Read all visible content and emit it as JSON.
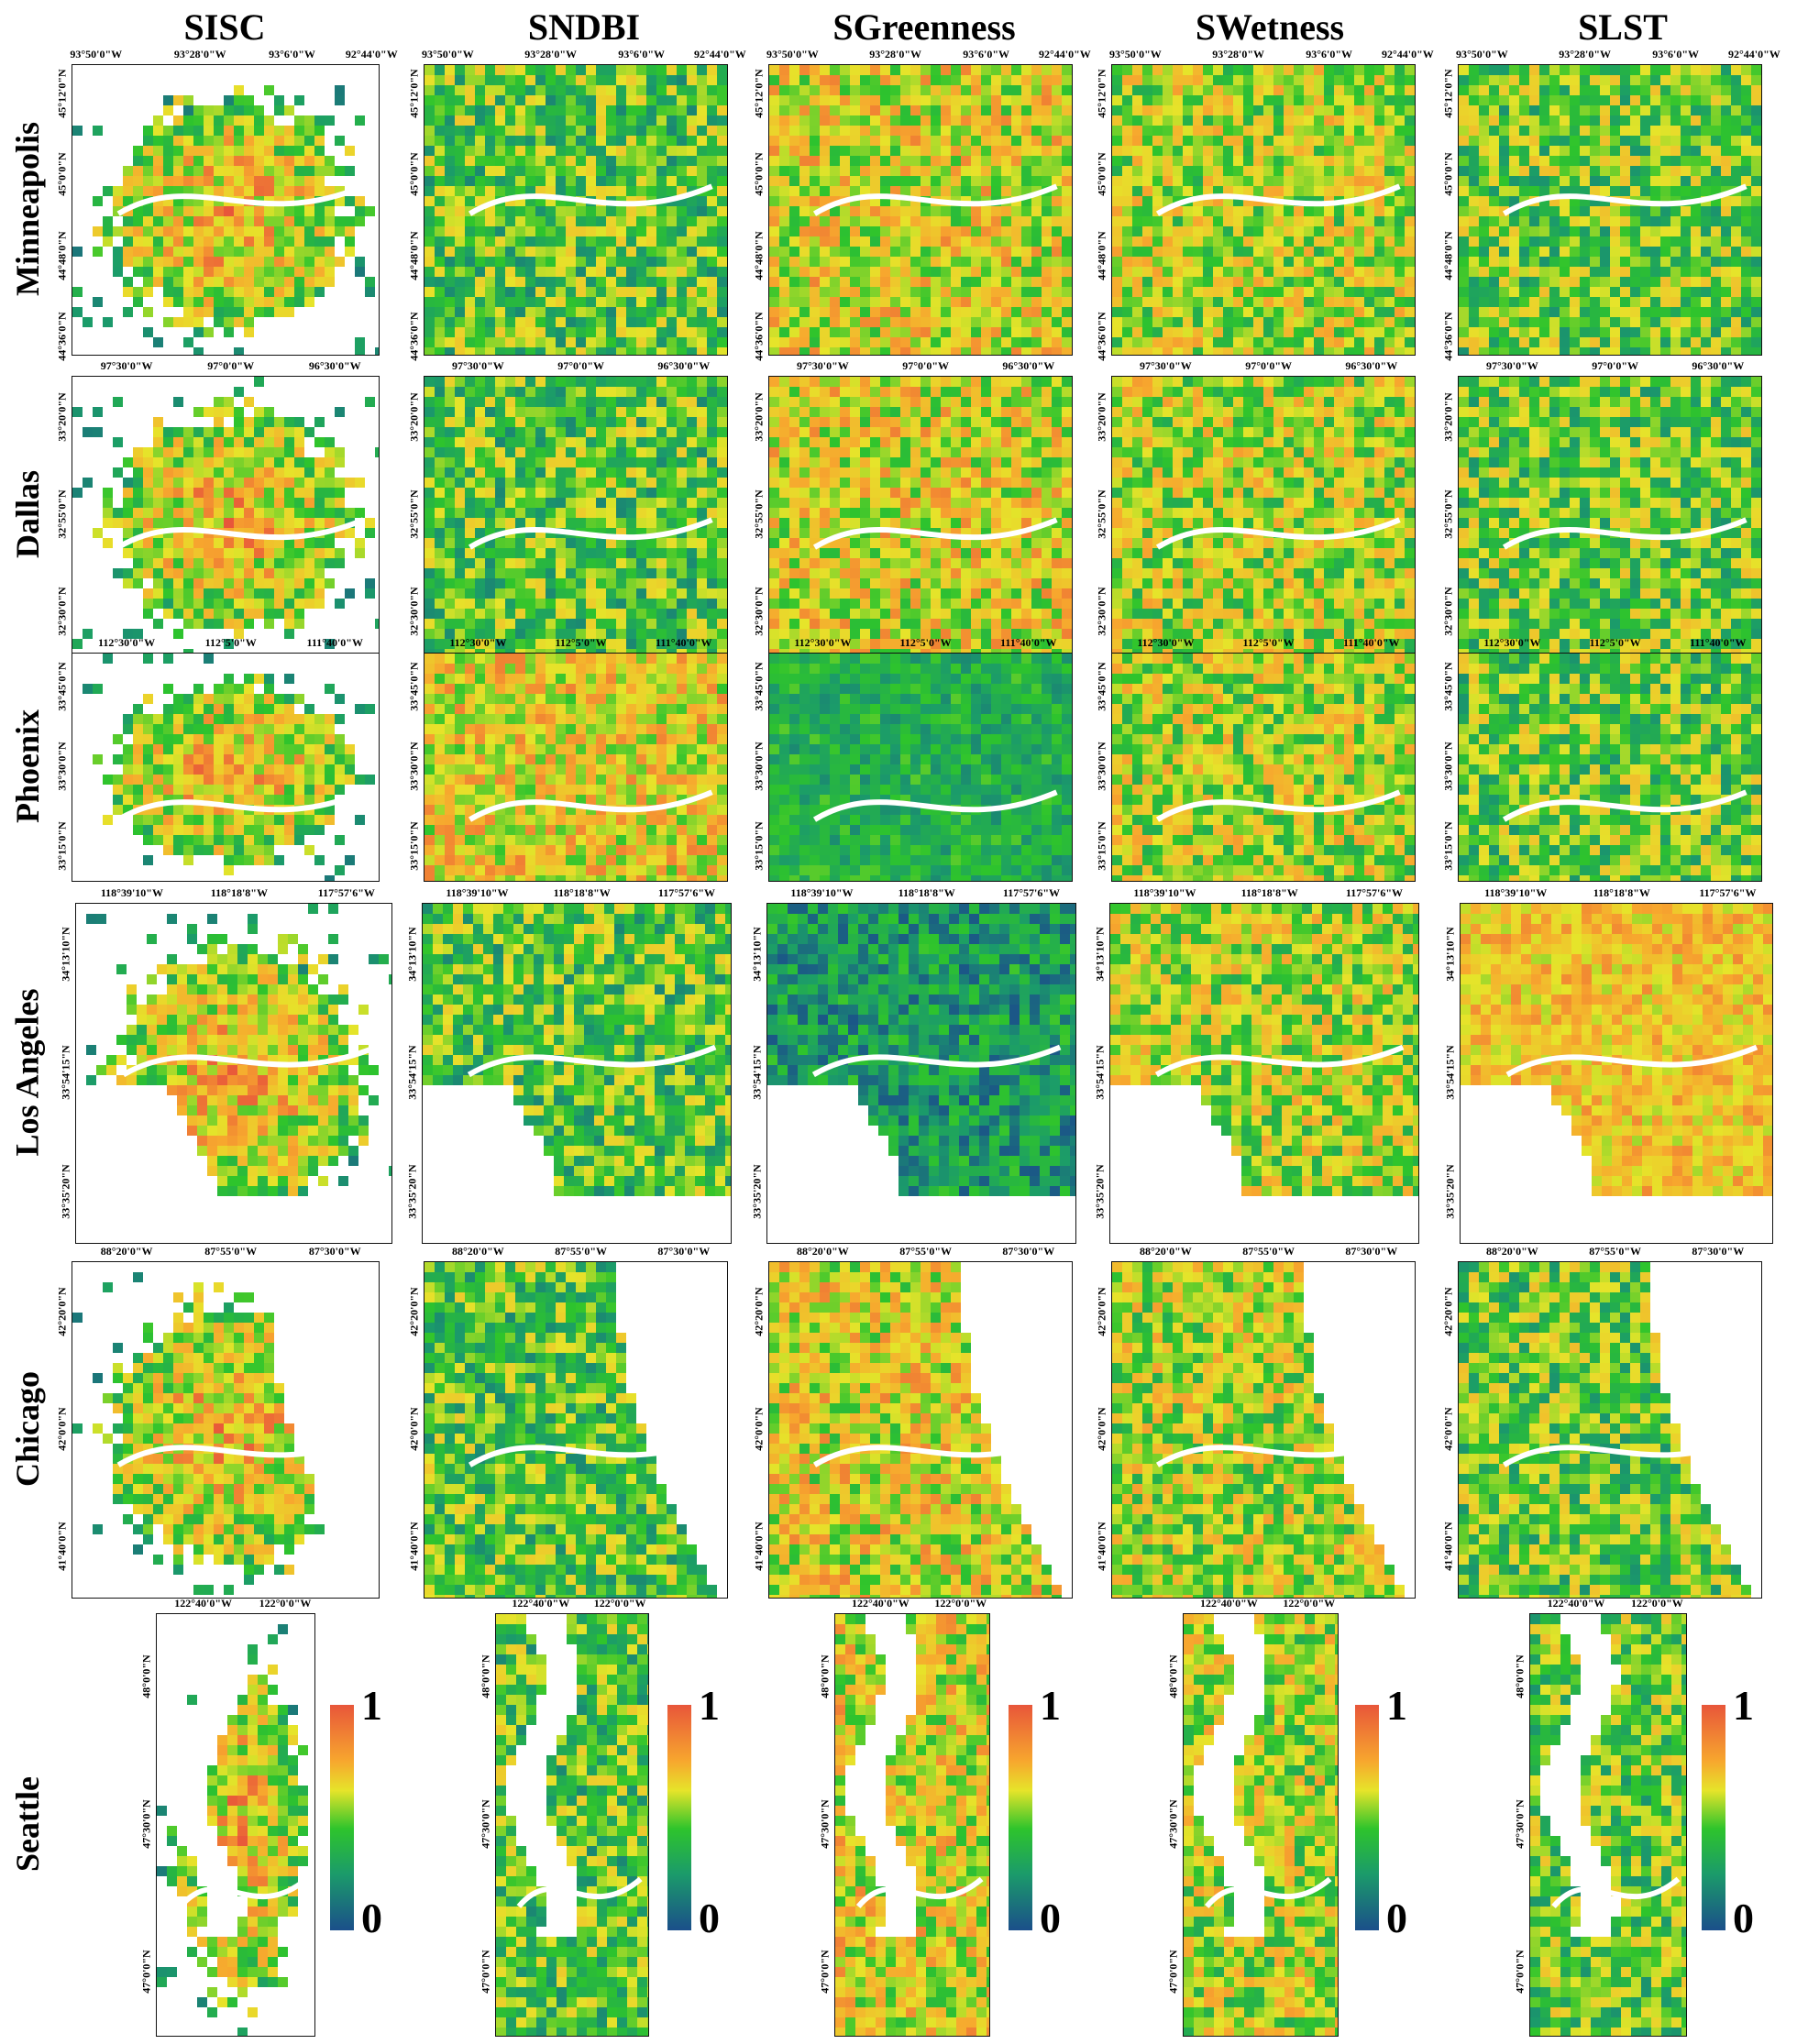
{
  "columns": [
    "SISC",
    "SNDBI",
    "SGreenness",
    "SWetness",
    "SLST"
  ],
  "color_scale": {
    "max_label": "1",
    "min_label": "0",
    "colors": [
      "#e8563a",
      "#f7a72e",
      "#e6e42a",
      "#2ec42c",
      "#1b9b6a",
      "#1b4f8a"
    ]
  },
  "cities": [
    {
      "name": "Minneapolis",
      "lon_ticks": [
        "93°50'0\"W",
        "93°28'0\"W",
        "93°6'0\"W",
        "92°44'0\"W"
      ],
      "lat_ticks": [
        "45°12'0\"N",
        "45°0'0\"N",
        "44°48'0\"N",
        "44°36'0\"N"
      ]
    },
    {
      "name": "Dallas",
      "lon_ticks": [
        "97°30'0\"W",
        "97°0'0\"W",
        "96°30'0\"W"
      ],
      "lat_ticks": [
        "33°20'0\"N",
        "32°55'0\"N",
        "32°30'0\"N"
      ]
    },
    {
      "name": "Phoenix",
      "lon_ticks": [
        "112°30'0\"W",
        "112°5'0\"W",
        "111°40'0\"W"
      ],
      "lat_ticks": [
        "33°45'0\"N",
        "33°30'0\"N",
        "33°15'0\"N"
      ]
    },
    {
      "name": "Los Angeles",
      "lon_ticks": [
        "118°39'10\"W",
        "118°18'8\"W",
        "117°57'6\"W"
      ],
      "lat_ticks": [
        "34°13'10\"N",
        "33°54'15\"N",
        "33°35'20\"N"
      ]
    },
    {
      "name": "Chicago",
      "lon_ticks": [
        "88°20'0\"W",
        "87°55'0\"W",
        "87°30'0\"W"
      ],
      "lat_ticks": [
        "42°20'0\"N",
        "42°0'0\"N",
        "41°40'0\"N"
      ]
    },
    {
      "name": "Seattle",
      "lon_ticks": [
        "122°40'0\"W",
        "122°0'0\"W"
      ],
      "lat_ticks": [
        "48°0'0\"N",
        "47°30'0\"N",
        "47°0'0\"N"
      ]
    }
  ]
}
